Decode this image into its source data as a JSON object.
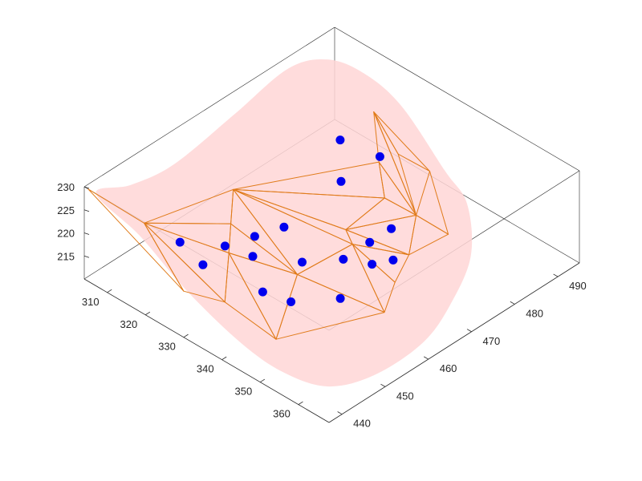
{
  "chart_data": {
    "type": "scatter",
    "title": "",
    "xlabel": "",
    "ylabel": "",
    "zlabel": "",
    "colors": {
      "points": "#0000ee",
      "mesh": "#e07b1a",
      "surface": "#ffd6d6"
    },
    "x_axis": {
      "range": [
        304,
        368
      ],
      "ticks": [
        "310",
        "320",
        "330",
        "340",
        "350",
        "360"
      ],
      "tick_values": [
        310,
        320,
        330,
        340,
        350,
        360
      ]
    },
    "y_axis": {
      "range": [
        437,
        495
      ],
      "ticks": [
        "440",
        "450",
        "460",
        "470",
        "480",
        "490"
      ],
      "tick_values": [
        440,
        450,
        460,
        470,
        480,
        490
      ]
    },
    "z_axis": {
      "range": [
        210,
        230
      ],
      "ticks": [
        "215",
        "220",
        "225",
        "230"
      ],
      "tick_values": [
        215,
        220,
        225,
        230
      ]
    },
    "series": [
      {
        "points": [
          {
            "x": 320,
            "y": 445,
            "z": 221
          },
          {
            "x": 326,
            "y": 445,
            "z": 219
          },
          {
            "x": 325,
            "y": 451,
            "z": 219
          },
          {
            "x": 330,
            "y": 453,
            "z": 218
          },
          {
            "x": 336,
            "y": 450,
            "z": 215
          },
          {
            "x": 326,
            "y": 457,
            "z": 218
          },
          {
            "x": 340,
            "y": 453,
            "z": 213
          },
          {
            "x": 328,
            "y": 462,
            "z": 218
          },
          {
            "x": 335,
            "y": 460,
            "z": 215
          },
          {
            "x": 345,
            "y": 460,
            "z": 212
          },
          {
            "x": 339,
            "y": 466,
            "z": 214
          },
          {
            "x": 342,
            "y": 470,
            "z": 212
          },
          {
            "x": 338,
            "y": 473,
            "z": 213
          },
          {
            "x": 343,
            "y": 474,
            "z": 211
          },
          {
            "x": 338,
            "y": 478,
            "z": 213
          },
          {
            "x": 326,
            "y": 477,
            "z": 218
          },
          {
            "x": 319,
            "y": 483,
            "z": 220
          },
          {
            "x": 326,
            "y": 486,
            "z": 218
          }
        ]
      }
    ]
  }
}
